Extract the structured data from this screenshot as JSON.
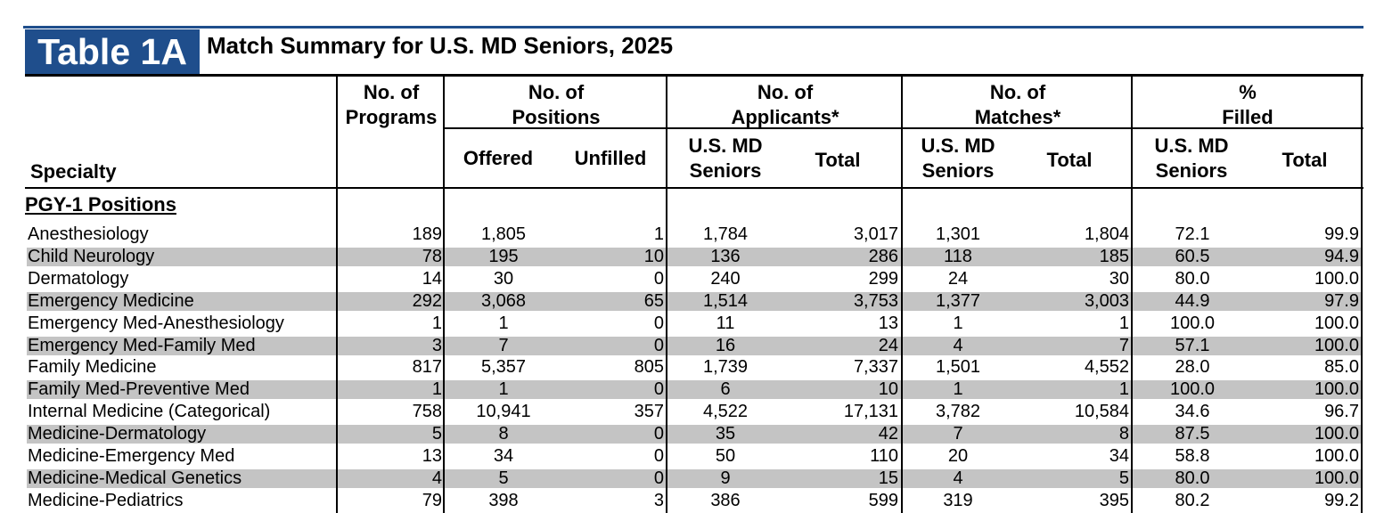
{
  "table_label": "Table 1A",
  "title": "Match Summary for U.S. MD Seniors, 2025",
  "headers": {
    "specialty": "Specialty",
    "programs": [
      "No. of",
      "Programs"
    ],
    "positions": [
      "No. of",
      "Positions"
    ],
    "offered": "Offered",
    "unfilled": "Unfilled",
    "applicants": [
      "No. of",
      "Applicants*"
    ],
    "app_seniors": [
      "U.S. MD",
      "Seniors"
    ],
    "app_total": "Total",
    "matches": [
      "No. of",
      "Matches*"
    ],
    "match_seniors": [
      "U.S. MD",
      "Seniors"
    ],
    "match_total": "Total",
    "filled": [
      "%",
      "Filled"
    ],
    "filled_seniors": [
      "U.S. MD",
      "Seniors"
    ],
    "filled_total": "Total"
  },
  "section": "PGY-1 Positions",
  "rows": [
    {
      "specialty": "Anesthesiology",
      "programs": "189",
      "offered": "1,805",
      "unfilled": "1",
      "app_seniors": "1,784",
      "app_total": "3,017",
      "match_seniors": "1,301",
      "match_total": "1,804",
      "pct_seniors": "72.1",
      "pct_total": "99.9"
    },
    {
      "specialty": "Child Neurology",
      "programs": "78",
      "offered": "195",
      "unfilled": "10",
      "app_seniors": "136",
      "app_total": "286",
      "match_seniors": "118",
      "match_total": "185",
      "pct_seniors": "60.5",
      "pct_total": "94.9"
    },
    {
      "specialty": "Dermatology",
      "programs": "14",
      "offered": "30",
      "unfilled": "0",
      "app_seniors": "240",
      "app_total": "299",
      "match_seniors": "24",
      "match_total": "30",
      "pct_seniors": "80.0",
      "pct_total": "100.0"
    },
    {
      "specialty": "Emergency Medicine",
      "programs": "292",
      "offered": "3,068",
      "unfilled": "65",
      "app_seniors": "1,514",
      "app_total": "3,753",
      "match_seniors": "1,377",
      "match_total": "3,003",
      "pct_seniors": "44.9",
      "pct_total": "97.9"
    },
    {
      "specialty": "Emergency Med-Anesthesiology",
      "programs": "1",
      "offered": "1",
      "unfilled": "0",
      "app_seniors": "11",
      "app_total": "13",
      "match_seniors": "1",
      "match_total": "1",
      "pct_seniors": "100.0",
      "pct_total": "100.0"
    },
    {
      "specialty": "Emergency Med-Family Med",
      "programs": "3",
      "offered": "7",
      "unfilled": "0",
      "app_seniors": "16",
      "app_total": "24",
      "match_seniors": "4",
      "match_total": "7",
      "pct_seniors": "57.1",
      "pct_total": "100.0"
    },
    {
      "specialty": "Family Medicine",
      "programs": "817",
      "offered": "5,357",
      "unfilled": "805",
      "app_seniors": "1,739",
      "app_total": "7,337",
      "match_seniors": "1,501",
      "match_total": "4,552",
      "pct_seniors": "28.0",
      "pct_total": "85.0"
    },
    {
      "specialty": "Family Med-Preventive Med",
      "programs": "1",
      "offered": "1",
      "unfilled": "0",
      "app_seniors": "6",
      "app_total": "10",
      "match_seniors": "1",
      "match_total": "1",
      "pct_seniors": "100.0",
      "pct_total": "100.0"
    },
    {
      "specialty": "Internal Medicine (Categorical)",
      "programs": "758",
      "offered": "10,941",
      "unfilled": "357",
      "app_seniors": "4,522",
      "app_total": "17,131",
      "match_seniors": "3,782",
      "match_total": "10,584",
      "pct_seniors": "34.6",
      "pct_total": "96.7"
    },
    {
      "specialty": "Medicine-Dermatology",
      "programs": "5",
      "offered": "8",
      "unfilled": "0",
      "app_seniors": "35",
      "app_total": "42",
      "match_seniors": "7",
      "match_total": "8",
      "pct_seniors": "87.5",
      "pct_total": "100.0"
    },
    {
      "specialty": "Medicine-Emergency Med",
      "programs": "13",
      "offered": "34",
      "unfilled": "0",
      "app_seniors": "50",
      "app_total": "110",
      "match_seniors": "20",
      "match_total": "34",
      "pct_seniors": "58.8",
      "pct_total": "100.0"
    },
    {
      "specialty": "Medicine-Medical Genetics",
      "programs": "4",
      "offered": "5",
      "unfilled": "0",
      "app_seniors": "9",
      "app_total": "15",
      "match_seniors": "4",
      "match_total": "5",
      "pct_seniors": "80.0",
      "pct_total": "100.0"
    },
    {
      "specialty": "Medicine-Pediatrics",
      "programs": "79",
      "offered": "398",
      "unfilled": "3",
      "app_seniors": "386",
      "app_total": "599",
      "match_seniors": "319",
      "match_total": "395",
      "pct_seniors": "80.2",
      "pct_total": "99.2"
    }
  ],
  "colors": {
    "badge": "#1f4e8c",
    "band": "#c4c4c4",
    "highlight": "#b3cde3"
  }
}
